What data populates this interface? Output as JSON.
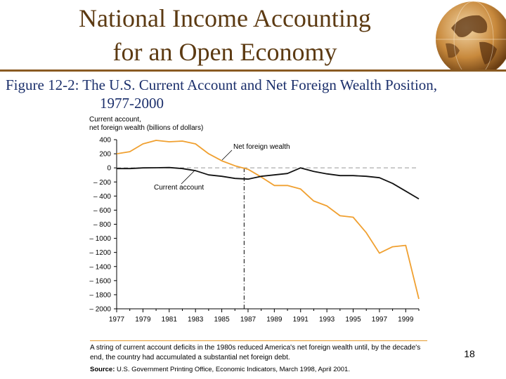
{
  "slide": {
    "title_line1": "National Income Accounting",
    "title_line2": "for an Open Economy",
    "figure_label": "Figure 12-2:",
    "figure_title_line1": " The U.S. Current Account and Net Foreign Wealth Position,",
    "figure_title_line2": "1977-2000",
    "page_number": "18",
    "note": "A string of current account deficits in the 1980s reduced America's net foreign wealth until, by the decade's end, the country had accumulated a substantial net foreign debt.",
    "source_label": "Source:",
    "source_text": "U.S. Government Printing Office, Economic Indicators, March 1998, April 2001."
  },
  "colors": {
    "title": "#5c3a12",
    "caption": "#1b2f6b",
    "net_foreign_wealth": "#f0a030",
    "current_account": "#111111",
    "zero_line": "#999999"
  },
  "chart_data": {
    "type": "line",
    "ylabel_line1": "Current account,",
    "ylabel_line2": "net foreign wealth (billions of dollars)",
    "ylim": [
      -2000,
      400
    ],
    "xlim": [
      1977,
      2000
    ],
    "yticks": [
      400,
      200,
      0,
      -200,
      -400,
      -600,
      -800,
      -1000,
      -1200,
      -1400,
      -1600,
      -1800,
      -2000
    ],
    "ytick_labels": [
      "400",
      "200",
      "0",
      "– 200",
      "– 400",
      "– 600",
      "– 800",
      "– 1000",
      "– 1200",
      "– 1400",
      "– 1600",
      "– 1800",
      "– 2000"
    ],
    "xticks": [
      1977,
      1979,
      1981,
      1983,
      1985,
      1987,
      1989,
      1991,
      1993,
      1995,
      1997,
      1999
    ],
    "xtick_labels": [
      "1977",
      "1979",
      "1981",
      "1983",
      "1985",
      "1987",
      "1989",
      "1991",
      "1993",
      "1995",
      "1997",
      "1999"
    ],
    "vertical_marker_x": 1986.7,
    "annotations": [
      "Net foreign wealth",
      "Current account"
    ],
    "series": [
      {
        "name": "Net foreign wealth",
        "x": [
          1977,
          1978,
          1979,
          1980,
          1981,
          1982,
          1983,
          1984,
          1985,
          1986,
          1987,
          1988,
          1989,
          1990,
          1991,
          1992,
          1993,
          1994,
          1995,
          1996,
          1997,
          1998,
          1999,
          2000
        ],
        "y": [
          200,
          230,
          340,
          390,
          370,
          380,
          340,
          200,
          100,
          30,
          -20,
          -130,
          -250,
          -250,
          -300,
          -470,
          -540,
          -680,
          -700,
          -920,
          -1210,
          -1120,
          -1100,
          -1860
        ]
      },
      {
        "name": "Current account",
        "x": [
          1977,
          1978,
          1979,
          1980,
          1981,
          1982,
          1983,
          1984,
          1985,
          1986,
          1987,
          1988,
          1989,
          1990,
          1991,
          1992,
          1993,
          1994,
          1995,
          1996,
          1997,
          1998,
          1999,
          2000
        ],
        "y": [
          -10,
          -10,
          0,
          2,
          5,
          -10,
          -40,
          -100,
          -120,
          -150,
          -160,
          -120,
          -100,
          -80,
          0,
          -50,
          -85,
          -110,
          -110,
          -120,
          -140,
          -220,
          -330,
          -440
        ]
      }
    ]
  }
}
